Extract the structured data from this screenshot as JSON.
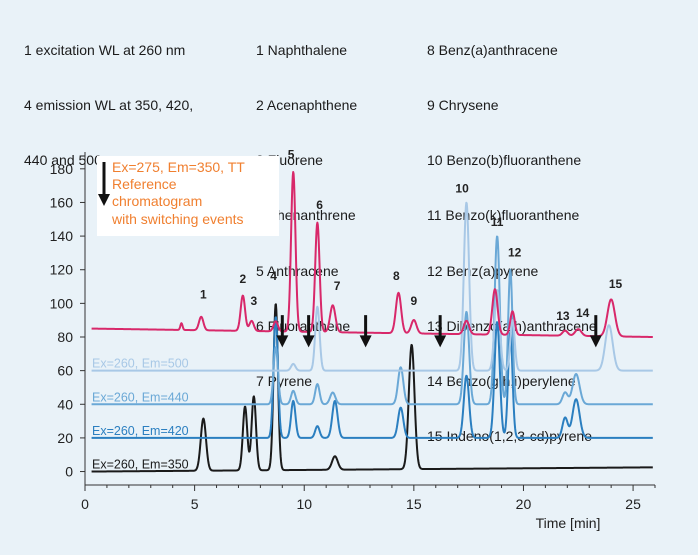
{
  "header": {
    "excitation_lines": [
      "1 excitation WL at 260 nm",
      "4 emission WL at 350, 420,",
      "440 and 500 nm"
    ],
    "compounds_col1": [
      "1 Naphthalene",
      "2 Acenaphthene",
      "3 Fluorene",
      "4 Phenanthrene",
      "5 Anthracene",
      "6 Fluoranthene",
      "7 Pyrene"
    ],
    "compounds_col2": [
      "8 Benz(a)anthracene",
      "9 Chrysene",
      "10 Benzo(b)fluoranthene",
      "11 Benzo(k)fluoranthene",
      "12 Benz(a)pyrene",
      "13 Dibenzo(a,h)anthracene",
      "14 Benzo(g,h,i)perylene",
      "15 Indeno(1,2,3-cd)pyrene"
    ]
  },
  "annotation": {
    "lines": [
      "Ex=275, Em=350, TT",
      "Reference",
      "chromatogram",
      "with switching events"
    ],
    "color": "#f07f2f"
  },
  "chart_data": {
    "type": "line",
    "xlabel": "Time [min]",
    "xlim": [
      0,
      26
    ],
    "ylim": [
      -8,
      190
    ],
    "xticks": [
      0,
      5,
      10,
      15,
      20,
      25
    ],
    "yticks": [
      0,
      20,
      40,
      60,
      80,
      100,
      120,
      140,
      160,
      180
    ],
    "switching_events_min": [
      9.0,
      10.2,
      12.8,
      16.2,
      23.3
    ],
    "series": [
      {
        "name": "Ex=260, Em=350",
        "color": "#1a1a1a",
        "baseline": 0,
        "drift": 2.5,
        "peaks": [
          {
            "t": 5.4,
            "h": 31,
            "w": 0.12
          },
          {
            "t": 7.3,
            "h": 38,
            "w": 0.1
          },
          {
            "t": 7.7,
            "h": 44,
            "w": 0.1
          },
          {
            "t": 8.7,
            "h": 99,
            "w": 0.1
          },
          {
            "t": 11.4,
            "h": 8,
            "w": 0.13
          },
          {
            "t": 14.9,
            "h": 74,
            "w": 0.13
          }
        ]
      },
      {
        "name": "Ex=260, Em=420",
        "color": "#2b7fc0",
        "baseline": 20,
        "drift": 0,
        "peaks": [
          {
            "t": 8.7,
            "h": 72,
            "w": 0.1
          },
          {
            "t": 9.5,
            "h": 22,
            "w": 0.1
          },
          {
            "t": 10.6,
            "h": 7,
            "w": 0.1
          },
          {
            "t": 11.4,
            "h": 22,
            "w": 0.12
          },
          {
            "t": 14.4,
            "h": 18,
            "w": 0.12
          },
          {
            "t": 17.4,
            "h": 37,
            "w": 0.12
          },
          {
            "t": 18.8,
            "h": 69,
            "w": 0.12
          },
          {
            "t": 19.4,
            "h": 63,
            "w": 0.1
          },
          {
            "t": 21.9,
            "h": 12,
            "w": 0.12
          },
          {
            "t": 22.4,
            "h": 23,
            "w": 0.16
          }
        ]
      },
      {
        "name": "Ex=260, Em=440",
        "color": "#6aa8d6",
        "baseline": 40,
        "drift": 0,
        "peaks": [
          {
            "t": 8.7,
            "h": 34,
            "w": 0.1
          },
          {
            "t": 9.5,
            "h": 8,
            "w": 0.1
          },
          {
            "t": 10.6,
            "h": 12,
            "w": 0.1
          },
          {
            "t": 11.3,
            "h": 7,
            "w": 0.12
          },
          {
            "t": 14.4,
            "h": 22,
            "w": 0.12
          },
          {
            "t": 17.4,
            "h": 55,
            "w": 0.12
          },
          {
            "t": 18.8,
            "h": 100,
            "w": 0.12
          },
          {
            "t": 19.4,
            "h": 80,
            "w": 0.1
          },
          {
            "t": 21.9,
            "h": 7,
            "w": 0.12
          },
          {
            "t": 22.4,
            "h": 18,
            "w": 0.16
          }
        ]
      },
      {
        "name": "Ex=260, Em=500",
        "color": "#a8c8e6",
        "baseline": 60,
        "drift": 0,
        "peaks": [
          {
            "t": 9.5,
            "h": 4,
            "w": 0.1
          },
          {
            "t": 10.6,
            "h": 38,
            "w": 0.1
          },
          {
            "t": 17.4,
            "h": 100,
            "w": 0.12
          },
          {
            "t": 18.8,
            "h": 48,
            "w": 0.12
          },
          {
            "t": 19.5,
            "h": 30,
            "w": 0.1
          },
          {
            "t": 23.9,
            "h": 27,
            "w": 0.17
          }
        ]
      },
      {
        "name": "Ex=275, Em=350, TT",
        "color": "#d8286a",
        "baseline": 85,
        "drift": -5,
        "peaks": [
          {
            "t": 4.4,
            "h": 4,
            "w": 0.05
          },
          {
            "t": 5.3,
            "h": 8,
            "w": 0.1
          },
          {
            "t": 7.2,
            "h": 21,
            "w": 0.1
          },
          {
            "t": 7.6,
            "h": 6,
            "w": 0.1
          },
          {
            "t": 8.7,
            "h": 6,
            "w": 0.1
          },
          {
            "t": 9.5,
            "h": 95,
            "w": 0.1
          },
          {
            "t": 10.6,
            "h": 65,
            "w": 0.1
          },
          {
            "t": 11.3,
            "h": 16,
            "w": 0.12
          },
          {
            "t": 14.3,
            "h": 24,
            "w": 0.12
          },
          {
            "t": 15.0,
            "h": 8,
            "w": 0.12
          },
          {
            "t": 17.4,
            "h": 8,
            "w": 0.12
          },
          {
            "t": 18.7,
            "h": 27,
            "w": 0.12
          },
          {
            "t": 19.5,
            "h": 14,
            "w": 0.1
          },
          {
            "t": 21.9,
            "h": 3,
            "w": 0.12
          },
          {
            "t": 22.5,
            "h": 4,
            "w": 0.14
          },
          {
            "t": 24.0,
            "h": 22,
            "w": 0.17
          }
        ]
      }
    ],
    "peak_labels": [
      {
        "label": "1",
        "t": 5.4,
        "y": 103
      },
      {
        "label": "2",
        "t": 7.2,
        "y": 112
      },
      {
        "label": "3",
        "t": 7.7,
        "y": 99
      },
      {
        "label": "4",
        "t": 8.6,
        "y": 114
      },
      {
        "label": "5",
        "t": 9.4,
        "y": 186
      },
      {
        "label": "6",
        "t": 10.7,
        "y": 156
      },
      {
        "label": "7",
        "t": 11.5,
        "y": 108
      },
      {
        "label": "8",
        "t": 14.2,
        "y": 114
      },
      {
        "label": "9",
        "t": 15.0,
        "y": 99
      },
      {
        "label": "10",
        "t": 17.2,
        "y": 166
      },
      {
        "label": "11",
        "t": 18.8,
        "y": 146
      },
      {
        "label": "12",
        "t": 19.6,
        "y": 128
      },
      {
        "label": "13",
        "t": 21.8,
        "y": 90
      },
      {
        "label": "14",
        "t": 22.7,
        "y": 92
      },
      {
        "label": "15",
        "t": 24.2,
        "y": 109
      }
    ]
  }
}
